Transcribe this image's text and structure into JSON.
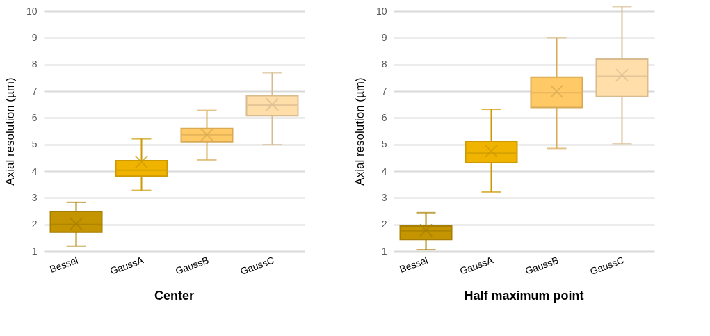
{
  "chart_data": [
    {
      "type": "box",
      "title": "Center",
      "ylabel": "Axial resolution (µm)",
      "categories": [
        "Bessel",
        "GaussA",
        "GaussB",
        "GaussC"
      ],
      "boxes": [
        {
          "low": 1.19,
          "q1": 1.71,
          "median": 2.0,
          "q3": 2.49,
          "high": 2.83,
          "mean": 2.02
        },
        {
          "low": 3.28,
          "q1": 3.81,
          "median": 4.03,
          "q3": 4.39,
          "high": 5.21,
          "mean": 4.35
        },
        {
          "low": 4.42,
          "q1": 5.1,
          "median": 5.36,
          "q3": 5.6,
          "high": 6.28,
          "mean": 5.36
        },
        {
          "low": 4.99,
          "q1": 6.08,
          "median": 6.48,
          "q3": 6.83,
          "high": 7.69,
          "mean": 6.5
        }
      ],
      "colors": [
        "#c49500",
        "#f0b400",
        "#ffc966",
        "#ffdeaa"
      ],
      "ylim": [
        1,
        10
      ],
      "yticks": [
        1,
        2,
        3,
        4,
        5,
        6,
        7,
        8,
        9,
        10
      ],
      "grid": "y",
      "marker": "cross"
    },
    {
      "type": "box",
      "title": "Half maximum point",
      "ylabel": "Axial resolution (µm)",
      "categories": [
        "Bessel",
        "GaussA",
        "GaussB",
        "GaussC"
      ],
      "boxes": [
        {
          "low": 1.05,
          "q1": 1.44,
          "median": 1.76,
          "q3": 1.94,
          "high": 2.44,
          "mean": 1.78
        },
        {
          "low": 3.22,
          "q1": 4.31,
          "median": 4.67,
          "q3": 5.12,
          "high": 6.32,
          "mean": 4.75
        },
        {
          "low": 4.85,
          "q1": 6.39,
          "median": 6.94,
          "q3": 7.53,
          "high": 9.0,
          "mean": 6.99
        },
        {
          "low": 5.03,
          "q1": 6.8,
          "median": 7.56,
          "q3": 8.2,
          "high": 10.17,
          "mean": 7.6
        }
      ],
      "colors": [
        "#c49500",
        "#f0b400",
        "#ffc966",
        "#ffdeaa"
      ],
      "ylim": [
        1,
        10
      ],
      "yticks": [
        1,
        2,
        3,
        4,
        5,
        6,
        7,
        8,
        9,
        10
      ],
      "grid": "y",
      "marker": "cross"
    }
  ]
}
